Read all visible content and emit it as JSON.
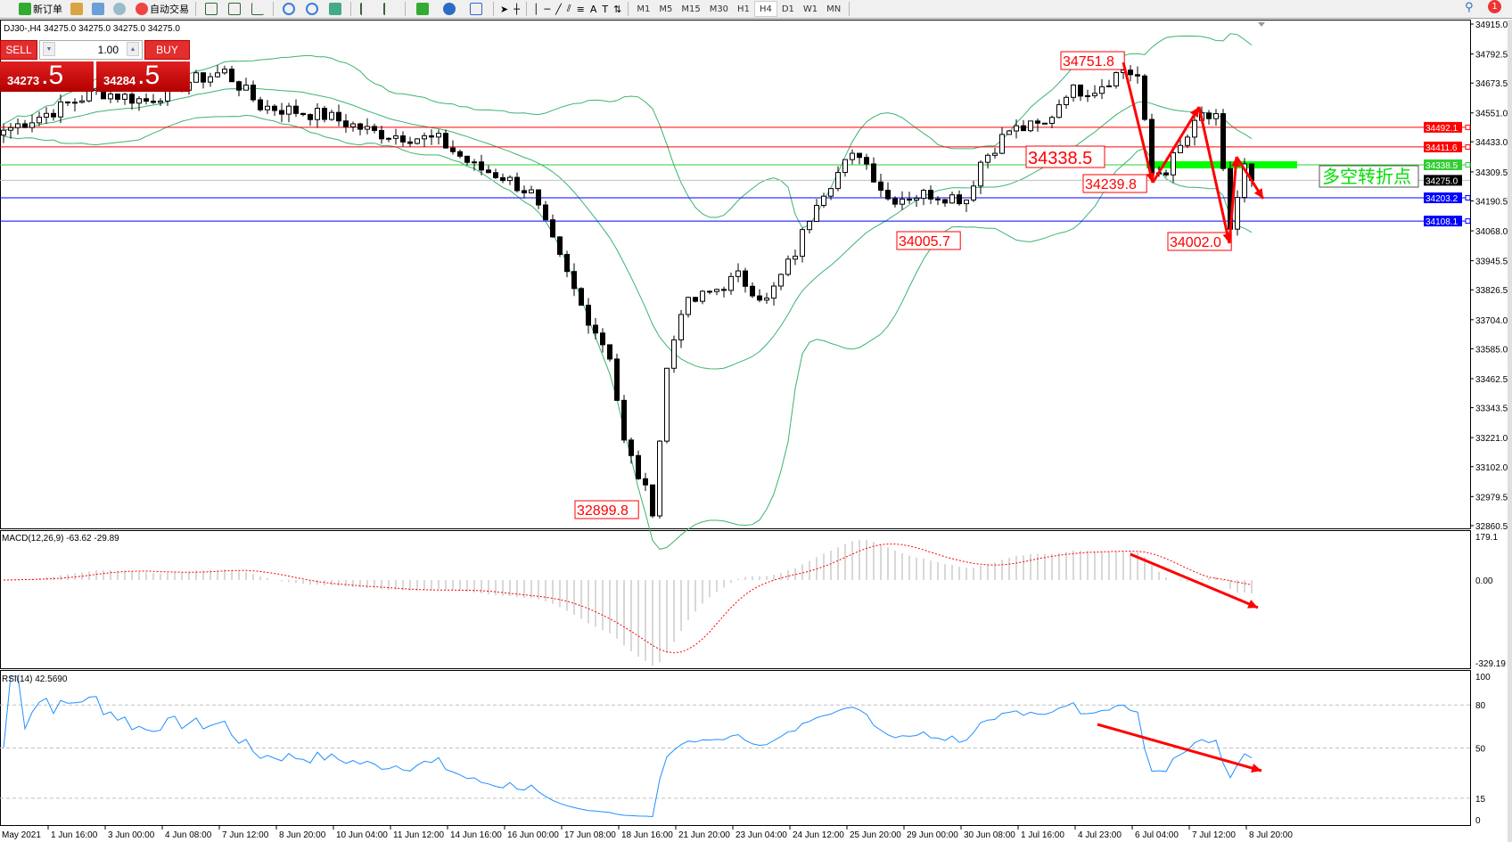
{
  "toolbar": {
    "new_order": "新订单",
    "auto_trading": "自动交易",
    "timeframes": [
      "M1",
      "M5",
      "M15",
      "M30",
      "H1",
      "H4",
      "D1",
      "W1",
      "MN"
    ],
    "active_timeframe": "H4",
    "notification_count": "1"
  },
  "chart": {
    "info": "DJ30-,H4  34275.0 34275.0 34275.0 34275.0",
    "macd_header": "MACD(12,26,9) -63.62 -29.89",
    "rsi_header": "RSI(14) 42.5690",
    "annotation": "多空转折点",
    "price_labels": [
      "34751.8",
      "34338.5",
      "34239.8",
      "34005.7",
      "34002.0",
      "32899.8"
    ],
    "hlines": [
      {
        "price": "34492.1",
        "color": "#ff0000"
      },
      {
        "price": "34411.6",
        "color": "#ff0000"
      },
      {
        "price": "34338.5",
        "color": "#32cd32"
      },
      {
        "price": "34275.0",
        "color": "#000000"
      },
      {
        "price": "34203.2",
        "color": "#0000ff"
      },
      {
        "price": "34108.1",
        "color": "#0000ff"
      }
    ],
    "price_ticks": [
      "34915.0",
      "34792.5",
      "34673.5",
      "34551.0",
      "34433.0",
      "34309.5",
      "34190.5",
      "34068.0",
      "33945.5",
      "33826.5",
      "33704.0",
      "33585.0",
      "33462.5",
      "33343.5",
      "33221.0",
      "33102.0",
      "32979.5",
      "32860.5"
    ],
    "macd_ticks": [
      "179.1",
      "0.00",
      "-329.19"
    ],
    "rsi_ticks": [
      "100",
      "80",
      "50",
      "15",
      "0"
    ],
    "time_labels": [
      "May 2021",
      "1 Jun 16:00",
      "3 Jun 00:00",
      "4 Jun 08:00",
      "7 Jun 12:00",
      "8 Jun 20:00",
      "10 Jun 04:00",
      "11 Jun 12:00",
      "14 Jun 16:00",
      "16 Jun 00:00",
      "17 Jun 08:00",
      "18 Jun 16:00",
      "21 Jun 20:00",
      "23 Jun 04:00",
      "24 Jun 12:00",
      "25 Jun 20:00",
      "29 Jun 00:00",
      "30 Jun 08:00",
      "1 Jul 16:00",
      "4 Jul 23:00",
      "6 Jul 04:00",
      "7 Jul 12:00",
      "8 Jul 20:00"
    ]
  },
  "trade_panel": {
    "sell": "SELL",
    "buy": "BUY",
    "lot": "1.00",
    "sell_main": "34273",
    "sell_big": ".5",
    "buy_main": "34284",
    "buy_big": ".5"
  },
  "chart_data": {
    "type": "candlestick",
    "symbol": "DJ30-",
    "timeframe": "H4",
    "close_path_bar_price": [
      [
        0,
        34480
      ],
      [
        7,
        34560
      ],
      [
        13,
        34640
      ],
      [
        20,
        34600
      ],
      [
        26,
        34680
      ],
      [
        31,
        34720
      ],
      [
        36,
        34580
      ],
      [
        45,
        34540
      ],
      [
        52,
        34470
      ],
      [
        61,
        34440
      ],
      [
        66,
        34330
      ],
      [
        70,
        34290
      ],
      [
        74,
        34220
      ],
      [
        78,
        33950
      ],
      [
        81,
        33760
      ],
      [
        85,
        33560
      ],
      [
        87,
        33200
      ],
      [
        90,
        33000
      ],
      [
        91,
        32930
      ],
      [
        93,
        33500
      ],
      [
        95,
        33750
      ],
      [
        100,
        33830
      ],
      [
        103,
        33880
      ],
      [
        107,
        33780
      ],
      [
        111,
        33980
      ],
      [
        114,
        34200
      ],
      [
        118,
        34340
      ],
      [
        120,
        34390
      ],
      [
        124,
        34200
      ],
      [
        130,
        34220
      ],
      [
        135,
        34200
      ],
      [
        137,
        34350
      ],
      [
        141,
        34480
      ],
      [
        146,
        34500
      ],
      [
        149,
        34640
      ],
      [
        153,
        34650
      ],
      [
        157,
        34730
      ],
      [
        159,
        34700
      ],
      [
        161,
        34300
      ],
      [
        163,
        34320
      ],
      [
        168,
        34540
      ],
      [
        170,
        34520
      ],
      [
        172,
        34080
      ],
      [
        174,
        34330
      ],
      [
        175,
        34275
      ]
    ],
    "price_range": [
      32860.5,
      34915.0
    ],
    "indicators": [
      "Bollinger Bands",
      "MACD(12,26,9)",
      "RSI(14)"
    ]
  }
}
